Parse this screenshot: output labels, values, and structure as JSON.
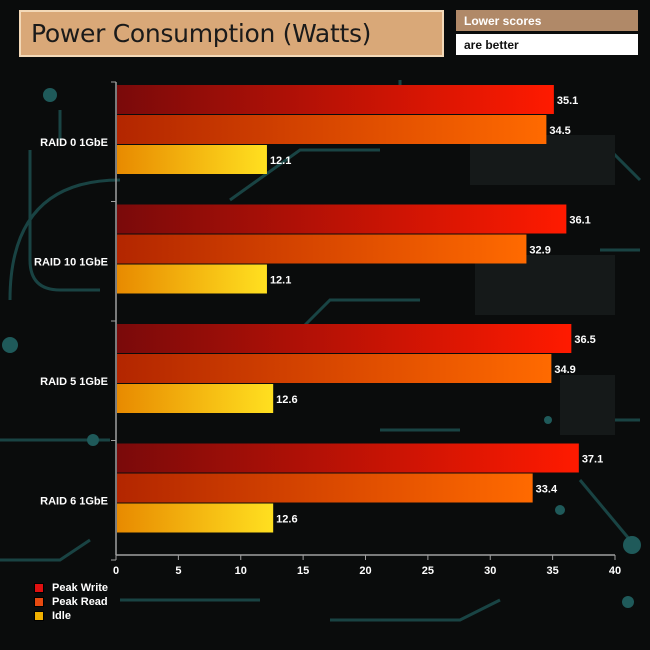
{
  "header": {
    "title": "Power Consumption (Watts)",
    "note_line1": "Lower scores",
    "note_line2": "are better"
  },
  "chart_data": {
    "type": "bar",
    "orientation": "horizontal",
    "title": "Power Consumption (Watts)",
    "categories": [
      "RAID 0 1GbE",
      "RAID 10 1GbE",
      "RAID 5 1GbE",
      "RAID 6 1GbE"
    ],
    "series": [
      {
        "name": "Peak Write",
        "values": [
          35.1,
          36.1,
          36.5,
          37.1
        ],
        "color_start": "#7a0a0a",
        "color_end": "#ff1a00"
      },
      {
        "name": "Peak Read",
        "values": [
          34.5,
          32.9,
          34.9,
          33.4
        ],
        "color_start": "#b32600",
        "color_end": "#ff6a00"
      },
      {
        "name": "Idle",
        "values": [
          12.1,
          12.1,
          12.6,
          12.6
        ],
        "color_start": "#e88a00",
        "color_end": "#ffe020"
      }
    ],
    "xlim": [
      0,
      40
    ],
    "xticks": [
      0,
      5,
      10,
      15,
      20,
      25,
      30,
      35,
      40
    ],
    "xlabel": "",
    "ylabel": "",
    "legend_position": "bottom-left",
    "note": "Lower scores are better"
  },
  "legend": [
    {
      "label": "Peak Write",
      "color": "#e01010"
    },
    {
      "label": "Peak Read",
      "color": "#e84a10"
    },
    {
      "label": "Idle",
      "color": "#f0b000"
    }
  ]
}
